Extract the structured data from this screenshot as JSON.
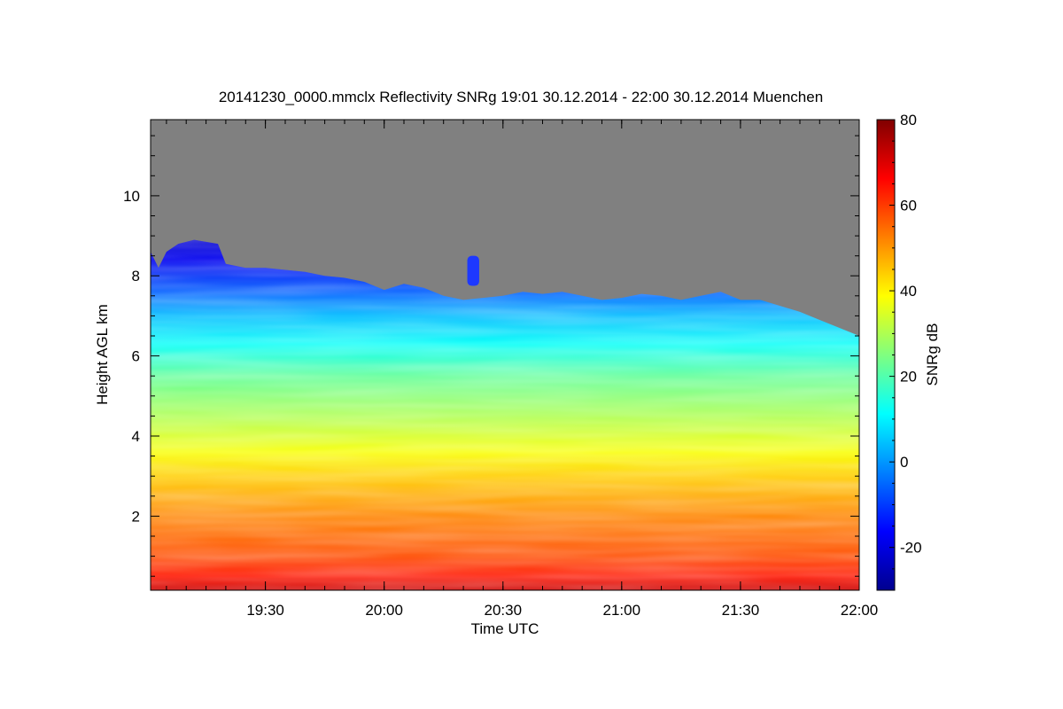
{
  "chart_data": {
    "type": "heatmap",
    "title": "20141230_0000.mmclx Reflectivity SNRg   19:01 30.12.2014 - 22:00 30.12.2014 Muenchen",
    "xlabel": "Time UTC",
    "ylabel": "Height AGL km",
    "colorbar_label": "SNRg dB",
    "x_ticks": [
      "19:30",
      "20:00",
      "20:30",
      "21:00",
      "21:30",
      "22:00"
    ],
    "x_tick_minutes": [
      1170,
      1200,
      1230,
      1260,
      1290,
      1320
    ],
    "xlim_minutes": [
      1141,
      1320
    ],
    "y_ticks": [
      2,
      4,
      6,
      8,
      10
    ],
    "ylim": [
      0.15,
      11.9
    ],
    "colorbar_ticks": [
      -20,
      0,
      20,
      40,
      60,
      80
    ],
    "colorbar_range": [
      -30,
      80
    ],
    "background_color": "#808080",
    "echo_top_km": [
      [
        1141,
        8.6
      ],
      [
        1143,
        8.2
      ],
      [
        1145,
        8.6
      ],
      [
        1148,
        8.8
      ],
      [
        1152,
        8.9
      ],
      [
        1158,
        8.8
      ],
      [
        1160,
        8.3
      ],
      [
        1165,
        8.2
      ],
      [
        1170,
        8.2
      ],
      [
        1175,
        8.15
      ],
      [
        1180,
        8.1
      ],
      [
        1185,
        8.0
      ],
      [
        1190,
        7.95
      ],
      [
        1195,
        7.85
      ],
      [
        1200,
        7.65
      ],
      [
        1205,
        7.8
      ],
      [
        1210,
        7.7
      ],
      [
        1215,
        7.5
      ],
      [
        1220,
        7.4
      ],
      [
        1225,
        7.45
      ],
      [
        1230,
        7.5
      ],
      [
        1235,
        7.6
      ],
      [
        1240,
        7.55
      ],
      [
        1245,
        7.6
      ],
      [
        1250,
        7.5
      ],
      [
        1255,
        7.4
      ],
      [
        1260,
        7.45
      ],
      [
        1265,
        7.55
      ],
      [
        1270,
        7.5
      ],
      [
        1275,
        7.4
      ],
      [
        1280,
        7.5
      ],
      [
        1285,
        7.6
      ],
      [
        1290,
        7.4
      ],
      [
        1295,
        7.4
      ],
      [
        1300,
        7.25
      ],
      [
        1305,
        7.1
      ],
      [
        1310,
        6.9
      ],
      [
        1315,
        6.7
      ],
      [
        1320,
        6.5
      ]
    ],
    "snr_profile": [
      {
        "km": 0.15,
        "db": 72
      },
      {
        "km": 0.5,
        "db": 64
      },
      {
        "km": 1.0,
        "db": 58
      },
      {
        "km": 2.0,
        "db": 52
      },
      {
        "km": 3.0,
        "db": 44
      },
      {
        "km": 3.6,
        "db": 38
      },
      {
        "km": 4.5,
        "db": 30
      },
      {
        "km": 5.5,
        "db": 22
      },
      {
        "km": 6.3,
        "db": 12
      },
      {
        "km": 7.0,
        "db": 4
      },
      {
        "km": 7.6,
        "db": -6
      },
      {
        "km": 8.4,
        "db": -18
      },
      {
        "km": 9.0,
        "db": -22
      }
    ],
    "isolated_cell": {
      "start_min": 1221,
      "end_min": 1224,
      "bottom_km": 7.75,
      "top_km": 8.5
    }
  }
}
